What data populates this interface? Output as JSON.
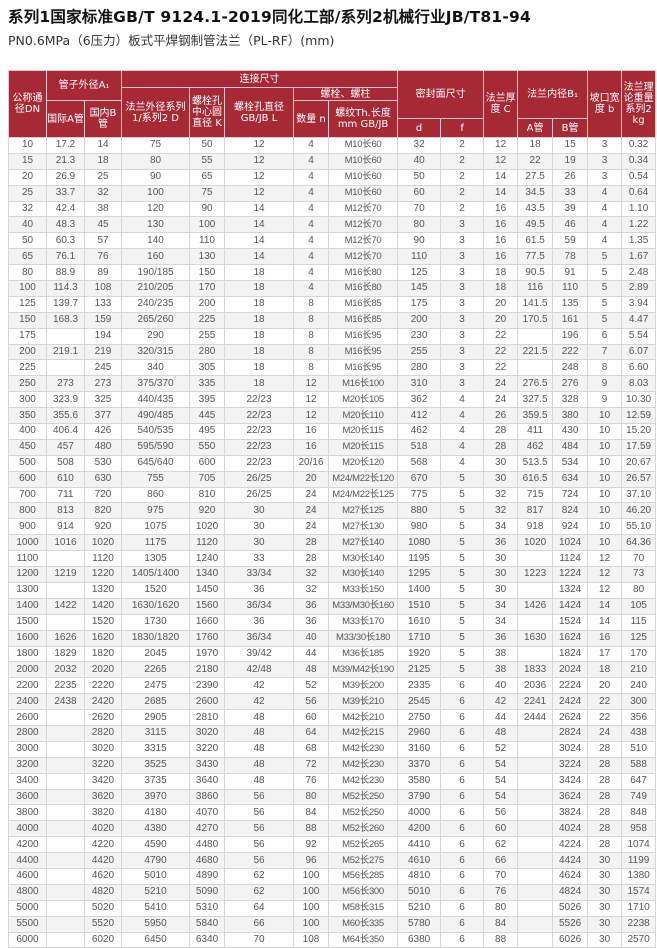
{
  "title": "系列1国家标准GB/T 9124.1-2019同化工部/系列2机械行业JB/T81-94",
  "subtitle": "PN0.6MPa（6压力）板式平焊钢制管法兰（PL-RF）(mm)",
  "colors": {
    "header_bg": "#a62a36",
    "header_text": "#ffffff",
    "row_alt": "#f3f3f3"
  },
  "headers": {
    "dn": "公称通径DN",
    "pipe_od": "管子外径A₁",
    "pipe_a": "国际A管",
    "pipe_b": "国内B管",
    "connection": "连接尺寸",
    "flange_od": "法兰外径系列1/系列2 D",
    "bolt_circle": "螺栓孔中心圆直径 K",
    "bolt_hole": "螺栓孔直径 GB/JB L",
    "bolts": "螺栓、螺柱",
    "bolt_qty": "数量 n",
    "thread": "螺纹Th.长度mm GB/JB",
    "seal": "密封面尺寸",
    "seal_d": "d",
    "seal_f": "f",
    "thickness": "法兰厚度 C",
    "flange_id": "法兰内径B₁",
    "fid_a": "A管",
    "fid_b": "B管",
    "bevel": "坡口宽度 b",
    "weight": "法兰理论重量系列2 kg"
  },
  "rows": [
    [
      "10",
      "17.2",
      "14",
      "75",
      "50",
      "12",
      "4",
      "M10长60",
      "32",
      "2",
      "12",
      "18",
      "15",
      "3",
      "0.32"
    ],
    [
      "15",
      "21.3",
      "18",
      "80",
      "55",
      "12",
      "4",
      "M10长60",
      "40",
      "2",
      "12",
      "22",
      "19",
      "3",
      "0.34"
    ],
    [
      "20",
      "26.9",
      "25",
      "90",
      "65",
      "12",
      "4",
      "M10长60",
      "50",
      "2",
      "14",
      "27.5",
      "26",
      "3",
      "0.54"
    ],
    [
      "25",
      "33.7",
      "32",
      "100",
      "75",
      "12",
      "4",
      "M10长60",
      "60",
      "2",
      "14",
      "34.5",
      "33",
      "4",
      "0.64"
    ],
    [
      "32",
      "42.4",
      "38",
      "120",
      "90",
      "14",
      "4",
      "M12长70",
      "70",
      "2",
      "16",
      "43.5",
      "39",
      "4",
      "1.10"
    ],
    [
      "40",
      "48.3",
      "45",
      "130",
      "100",
      "14",
      "4",
      "M12长70",
      "80",
      "3",
      "16",
      "49.5",
      "46",
      "4",
      "1.22"
    ],
    [
      "50",
      "60.3",
      "57",
      "140",
      "110",
      "14",
      "4",
      "M12长70",
      "90",
      "3",
      "16",
      "61.5",
      "59",
      "4",
      "1.35"
    ],
    [
      "65",
      "76.1",
      "76",
      "160",
      "130",
      "14",
      "4",
      "M12长70",
      "110",
      "3",
      "16",
      "77.5",
      "78",
      "5",
      "1.67"
    ],
    [
      "80",
      "88.9",
      "89",
      "190/185",
      "150",
      "18",
      "4",
      "M16长80",
      "125",
      "3",
      "18",
      "90.5",
      "91",
      "5",
      "2.48"
    ],
    [
      "100",
      "114.3",
      "108",
      "210/205",
      "170",
      "18",
      "4",
      "M16长80",
      "145",
      "3",
      "18",
      "116",
      "110",
      "5",
      "2.89"
    ],
    [
      "125",
      "139.7",
      "133",
      "240/235",
      "200",
      "18",
      "8",
      "M16长85",
      "175",
      "3",
      "20",
      "141.5",
      "135",
      "5",
      "3.94"
    ],
    [
      "150",
      "168.3",
      "159",
      "265/260",
      "225",
      "18",
      "8",
      "M16长85",
      "200",
      "3",
      "20",
      "170.5",
      "161",
      "5",
      "4.47"
    ],
    [
      "175",
      "",
      "194",
      "290",
      "255",
      "18",
      "8",
      "M16长95",
      "230",
      "3",
      "22",
      "",
      "196",
      "6",
      "5.54"
    ],
    [
      "200",
      "219.1",
      "219",
      "320/315",
      "280",
      "18",
      "8",
      "M16长95",
      "255",
      "3",
      "22",
      "221.5",
      "222",
      "7",
      "6.07"
    ],
    [
      "225",
      "",
      "245",
      "340",
      "305",
      "18",
      "8",
      "M16长95",
      "280",
      "3",
      "22",
      "",
      "248",
      "8",
      "6.60"
    ],
    [
      "250",
      "273",
      "273",
      "375/370",
      "335",
      "18",
      "12",
      "M16长100",
      "310",
      "3",
      "24",
      "276.5",
      "276",
      "9",
      "8.03"
    ],
    [
      "300",
      "323.9",
      "325",
      "440/435",
      "395",
      "22/23",
      "12",
      "M20长105",
      "362",
      "4",
      "24",
      "327.5",
      "328",
      "9",
      "10.30"
    ],
    [
      "350",
      "355.6",
      "377",
      "490/485",
      "445",
      "22/23",
      "12",
      "M20长110",
      "412",
      "4",
      "26",
      "359.5",
      "380",
      "10",
      "12.59"
    ],
    [
      "400",
      "406.4",
      "426",
      "540/535",
      "495",
      "22/23",
      "16",
      "M20长115",
      "462",
      "4",
      "28",
      "411",
      "430",
      "10",
      "15.20"
    ],
    [
      "450",
      "457",
      "480",
      "595/590",
      "550",
      "22/23",
      "16",
      "M20长115",
      "518",
      "4",
      "28",
      "462",
      "484",
      "10",
      "17.59"
    ],
    [
      "500",
      "508",
      "530",
      "645/640",
      "600",
      "22/23",
      "20/16",
      "M20长120",
      "568",
      "4",
      "30",
      "513.5",
      "534",
      "10",
      "20.67"
    ],
    [
      "600",
      "610",
      "630",
      "755",
      "705",
      "26/25",
      "20",
      "M24/M22长120",
      "670",
      "5",
      "30",
      "616.5",
      "634",
      "10",
      "26.57"
    ],
    [
      "700",
      "711",
      "720",
      "860",
      "810",
      "26/25",
      "24",
      "M24/M22长125",
      "775",
      "5",
      "32",
      "715",
      "724",
      "10",
      "37.10"
    ],
    [
      "800",
      "813",
      "820",
      "975",
      "920",
      "30",
      "24",
      "M27长125",
      "880",
      "5",
      "32",
      "817",
      "824",
      "10",
      "46.20"
    ],
    [
      "900",
      "914",
      "920",
      "1075",
      "1020",
      "30",
      "24",
      "M27长130",
      "980",
      "5",
      "34",
      "918",
      "924",
      "10",
      "55.10"
    ],
    [
      "1000",
      "1016",
      "1020",
      "1175",
      "1120",
      "30",
      "28",
      "M27长140",
      "1080",
      "5",
      "36",
      "1020",
      "1024",
      "10",
      "64.36"
    ],
    [
      "1100",
      "",
      "1120",
      "1305",
      "1240",
      "33",
      "28",
      "M30长140",
      "1195",
      "5",
      "30",
      "",
      "1124",
      "12",
      "70"
    ],
    [
      "1200",
      "1219",
      "1220",
      "1405/1400",
      "1340",
      "33/34",
      "32",
      "M30长140",
      "1295",
      "5",
      "30",
      "1223",
      "1224",
      "12",
      "73"
    ],
    [
      "1300",
      "",
      "1320",
      "1520",
      "1450",
      "36",
      "32",
      "M33长150",
      "1400",
      "5",
      "30",
      "",
      "1324",
      "12",
      "80"
    ],
    [
      "1400",
      "1422",
      "1420",
      "1630/1620",
      "1560",
      "36/34",
      "36",
      "M33/M30长160",
      "1510",
      "5",
      "34",
      "1426",
      "1424",
      "14",
      "105"
    ],
    [
      "1500",
      "",
      "1520",
      "1730",
      "1660",
      "36",
      "36",
      "M33长170",
      "1610",
      "5",
      "34",
      "",
      "1524",
      "14",
      "115"
    ],
    [
      "1600",
      "1626",
      "1620",
      "1830/1820",
      "1760",
      "36/34",
      "40",
      "M33/30长180",
      "1710",
      "5",
      "36",
      "1630",
      "1624",
      "16",
      "125"
    ],
    [
      "1800",
      "1829",
      "1820",
      "2045",
      "1970",
      "39/42",
      "44",
      "M36长185",
      "1920",
      "5",
      "38",
      "",
      "1824",
      "17",
      "170"
    ],
    [
      "2000",
      "2032",
      "2020",
      "2265",
      "2180",
      "42/48",
      "48",
      "M39/M42长190",
      "2125",
      "5",
      "38",
      "1833",
      "2024",
      "18",
      "210"
    ],
    [
      "2200",
      "2235",
      "2220",
      "2475",
      "2390",
      "42",
      "52",
      "M39长200",
      "2335",
      "6",
      "40",
      "2036",
      "2224",
      "20",
      "240"
    ],
    [
      "2400",
      "2438",
      "2420",
      "2685",
      "2600",
      "42",
      "56",
      "M39长210",
      "2545",
      "6",
      "42",
      "2241",
      "2424",
      "22",
      "300"
    ],
    [
      "2600",
      "",
      "2620",
      "2905",
      "2810",
      "48",
      "60",
      "M42长210",
      "2750",
      "6",
      "44",
      "2444",
      "2624",
      "22",
      "356"
    ],
    [
      "2800",
      "",
      "2820",
      "3115",
      "3020",
      "48",
      "64",
      "M42长215",
      "2960",
      "6",
      "48",
      "",
      "2824",
      "24",
      "438"
    ],
    [
      "3000",
      "",
      "3020",
      "3315",
      "3220",
      "48",
      "68",
      "M42长230",
      "3160",
      "6",
      "52",
      "",
      "3024",
      "28",
      "510"
    ],
    [
      "3200",
      "",
      "3220",
      "3525",
      "3430",
      "48",
      "72",
      "M42长230",
      "3370",
      "6",
      "54",
      "",
      "3224",
      "28",
      "588"
    ],
    [
      "3400",
      "",
      "3420",
      "3735",
      "3640",
      "48",
      "76",
      "M42长230",
      "3580",
      "6",
      "54",
      "",
      "3424",
      "28",
      "647"
    ],
    [
      "3600",
      "",
      "3620",
      "3970",
      "3860",
      "56",
      "80",
      "M52长250",
      "3790",
      "6",
      "54",
      "",
      "3624",
      "28",
      "749"
    ],
    [
      "3800",
      "",
      "3820",
      "4180",
      "4070",
      "56",
      "84",
      "M52长250",
      "4000",
      "6",
      "56",
      "",
      "3824",
      "28",
      "848"
    ],
    [
      "4000",
      "",
      "4020",
      "4380",
      "4270",
      "56",
      "88",
      "M52长260",
      "4200",
      "6",
      "60",
      "",
      "4024",
      "28",
      "958"
    ],
    [
      "4200",
      "",
      "4220",
      "4590",
      "4480",
      "56",
      "92",
      "M52长265",
      "4410",
      "6",
      "62",
      "",
      "4224",
      "28",
      "1074"
    ],
    [
      "4400",
      "",
      "4420",
      "4790",
      "4680",
      "56",
      "96",
      "M52长275",
      "4610",
      "6",
      "66",
      "",
      "4424",
      "30",
      "1199"
    ],
    [
      "4600",
      "",
      "4620",
      "5010",
      "4890",
      "62",
      "100",
      "M56长285",
      "4810",
      "6",
      "70",
      "",
      "4624",
      "30",
      "1380"
    ],
    [
      "4800",
      "",
      "4820",
      "5210",
      "5090",
      "62",
      "100",
      "M56长300",
      "5010",
      "6",
      "76",
      "",
      "4824",
      "30",
      "1574"
    ],
    [
      "5000",
      "",
      "5020",
      "5410",
      "5310",
      "64",
      "100",
      "M58长315",
      "5210",
      "6",
      "80",
      "",
      "5026",
      "30",
      "1710"
    ],
    [
      "5500",
      "",
      "5520",
      "5950",
      "5840",
      "66",
      "100",
      "M60长335",
      "5780",
      "6",
      "84",
      "",
      "5526",
      "30",
      "2238"
    ],
    [
      "6000",
      "",
      "6020",
      "6450",
      "6340",
      "70",
      "108",
      "M64长350",
      "6380",
      "6",
      "88",
      "",
      "6026",
      "30",
      "2570"
    ]
  ]
}
